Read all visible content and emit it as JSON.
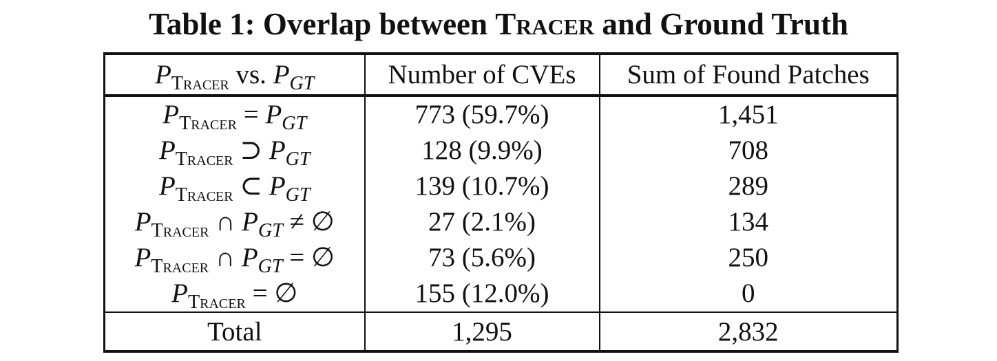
{
  "caption": {
    "prefix": "Table 1: Overlap between ",
    "tool_name": "Tracer",
    "suffix": " and Ground Truth"
  },
  "table": {
    "header": {
      "col1": {
        "p1": "P",
        "sub1": "Tracer",
        "mid": " vs. ",
        "p2": "P",
        "sub2": "GT"
      },
      "col2": "Number of CVEs",
      "col3": "Sum of Found Patches"
    },
    "rows": [
      {
        "p1": "P",
        "sub1": "Tracer",
        "op": " = ",
        "p2": "P",
        "sub2": "GT",
        "tail": "",
        "cves": "773 (59.7%)",
        "patches": "1,451"
      },
      {
        "p1": "P",
        "sub1": "Tracer",
        "op": " ⊃ ",
        "p2": "P",
        "sub2": "GT",
        "tail": "",
        "cves": "128 (9.9%)",
        "patches": "708"
      },
      {
        "p1": "P",
        "sub1": "Tracer",
        "op": " ⊂ ",
        "p2": "P",
        "sub2": "GT",
        "tail": "",
        "cves": "139 (10.7%)",
        "patches": "289"
      },
      {
        "p1": "P",
        "sub1": "Tracer",
        "op": " ∩ ",
        "p2": "P",
        "sub2": "GT",
        "tail": " ≠ ∅",
        "cves": "27 (2.1%)",
        "patches": "134"
      },
      {
        "p1": "P",
        "sub1": "Tracer",
        "op": " ∩ ",
        "p2": "P",
        "sub2": "GT",
        "tail": " = ∅",
        "cves": "73 (5.6%)",
        "patches": "250"
      },
      {
        "p1": "P",
        "sub1": "Tracer",
        "op": " = ∅",
        "p2": "",
        "sub2": "",
        "tail": "",
        "cves": "155 (12.0%)",
        "patches": "0"
      }
    ],
    "total": {
      "label": "Total",
      "cves": "1,295",
      "patches": "2,832"
    }
  }
}
